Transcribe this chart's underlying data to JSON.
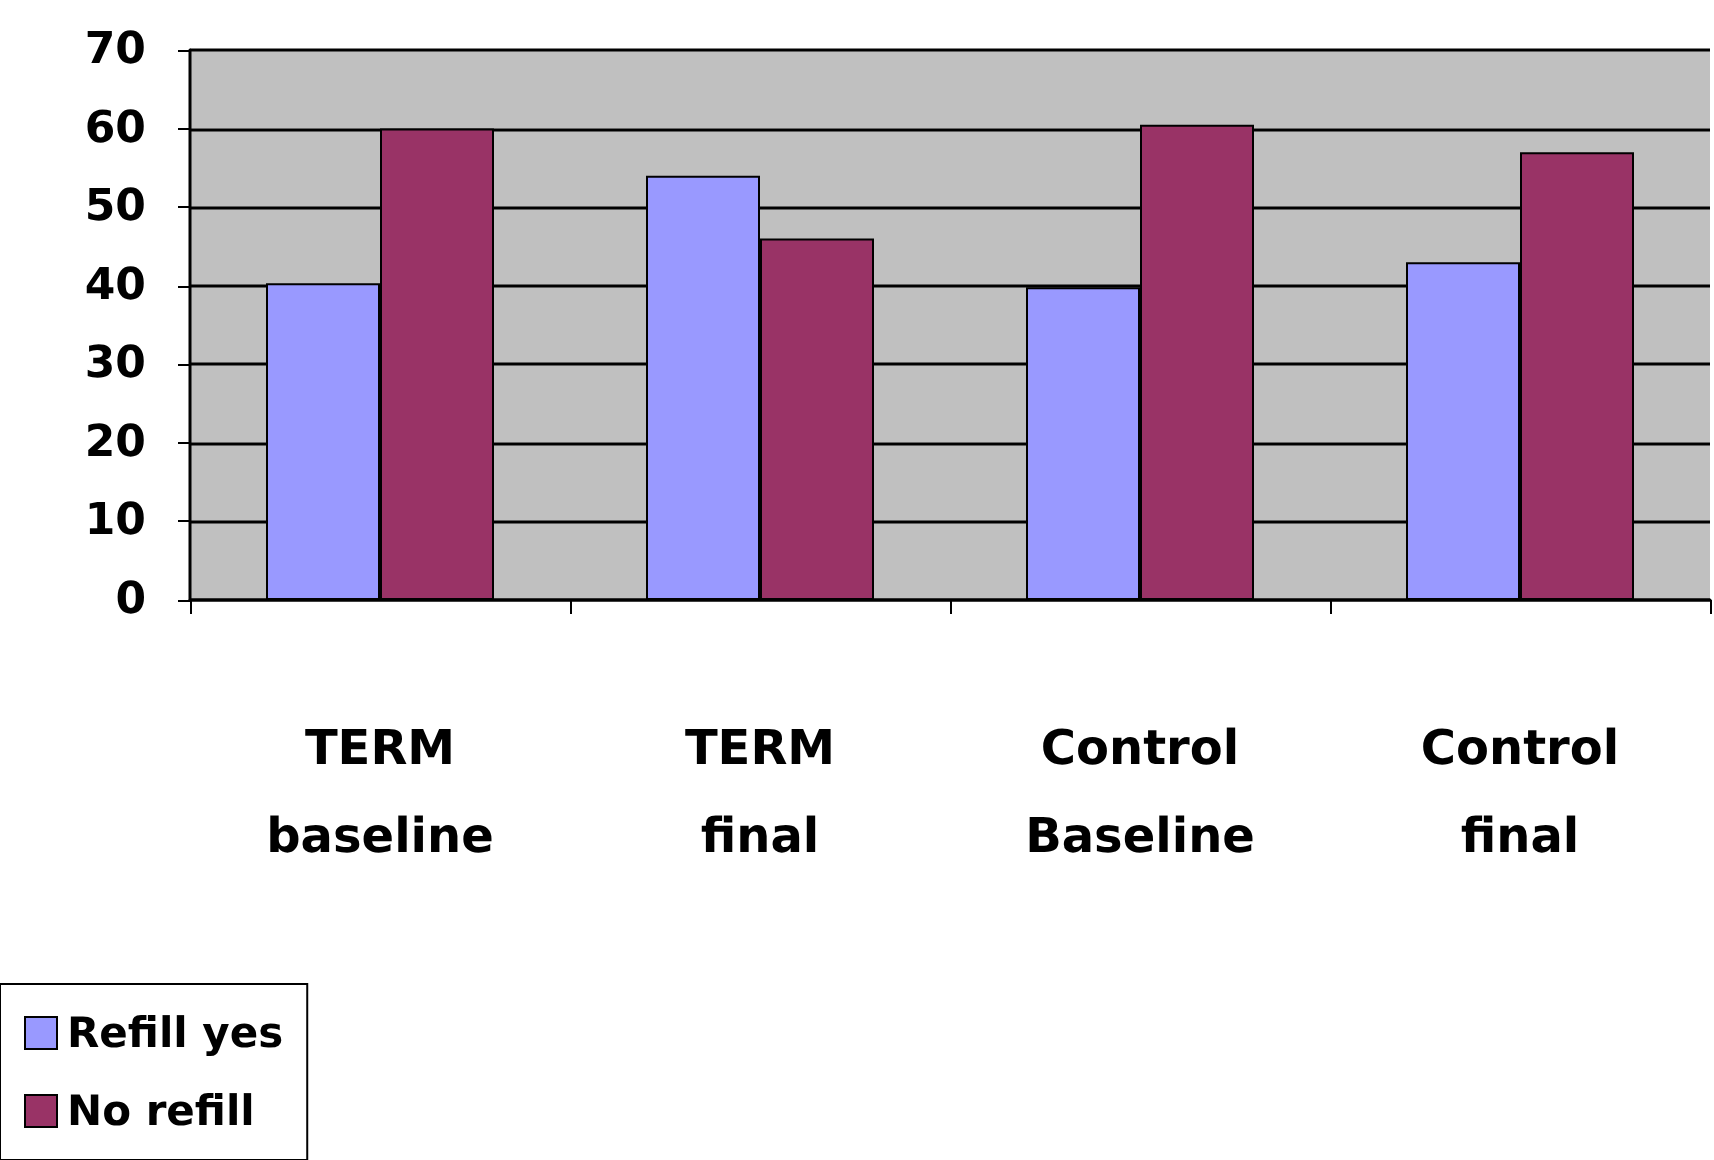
{
  "chart_data": {
    "type": "bar",
    "categories": [
      "TERM baseline",
      "TERM final",
      "Control Baseline",
      "Control final"
    ],
    "series": [
      {
        "name": "Refill yes",
        "color": "#9999ff",
        "values": [
          40.3,
          54,
          39.8,
          43
        ]
      },
      {
        "name": "No refill",
        "color": "#993366",
        "values": [
          60,
          46,
          60.5,
          57
        ]
      }
    ],
    "ylim": [
      0,
      70
    ],
    "yticks": [
      0,
      10,
      20,
      30,
      40,
      50,
      60,
      70
    ],
    "grid": "y",
    "legend": "bottom left"
  }
}
